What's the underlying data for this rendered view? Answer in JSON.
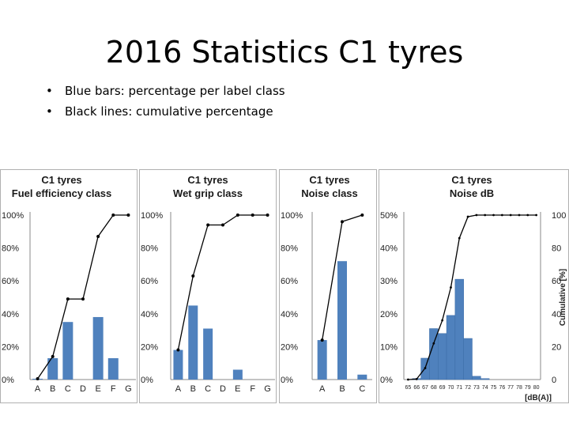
{
  "slide": {
    "title": "2016 Statistics C1 tyres",
    "bullets": [
      "Blue bars: percentage per label class",
      "Black lines: cumulative percentage"
    ]
  },
  "colors": {
    "bar": "#4f81bd",
    "line": "#000000",
    "axis": "#888888",
    "panel_border": "#b0b0b0"
  },
  "chart_data": [
    {
      "type": "bar",
      "title": "C1 tyres Fuel efficiency class",
      "title_lines": [
        "C1 tyres",
        "Fuel efficiency class"
      ],
      "categories": [
        "A",
        "B",
        "C",
        "D",
        "E",
        "F",
        "G"
      ],
      "series": [
        {
          "values": [
            0.5,
            13,
            35,
            0,
            38,
            13,
            0
          ]
        },
        {
          "values": [
            0.5,
            14,
            49,
            49,
            87,
            100,
            100
          ]
        }
      ],
      "ylim": [
        0,
        100
      ],
      "yticks": [
        "0%",
        "20%",
        "40%",
        "60%",
        "80%",
        "100%"
      ]
    },
    {
      "type": "bar",
      "title": "C1 tyres Wet grip class",
      "title_lines": [
        "C1 tyres",
        "Wet grip class"
      ],
      "categories": [
        "A",
        "B",
        "C",
        "D",
        "E",
        "F",
        "G"
      ],
      "series": [
        {
          "values": [
            18,
            45,
            31,
            0,
            6,
            0,
            0
          ]
        },
        {
          "values": [
            18,
            63,
            94,
            94,
            100,
            100,
            100
          ]
        }
      ],
      "ylim": [
        0,
        100
      ],
      "yticks": [
        "0%",
        "20%",
        "40%",
        "60%",
        "80%",
        "100%"
      ]
    },
    {
      "type": "bar",
      "title": "C1 tyres Noise class",
      "title_lines": [
        "C1 tyres",
        "Noise class"
      ],
      "categories": [
        "A",
        "B",
        "C"
      ],
      "series": [
        {
          "values": [
            24,
            72,
            3
          ]
        },
        {
          "values": [
            24,
            96,
            100
          ]
        }
      ],
      "ylim": [
        0,
        100
      ],
      "yticks": [
        "0%",
        "20%",
        "40%",
        "60%",
        "80%",
        "100%"
      ]
    },
    {
      "type": "bar",
      "title": "C1 tyres Noise dB",
      "title_lines": [
        "C1 tyres",
        "Noise dB"
      ],
      "categories": [
        "65",
        "66",
        "67",
        "68",
        "69",
        "70",
        "71",
        "72",
        "73",
        "74",
        "75",
        "76",
        "77",
        "78",
        "79",
        "80"
      ],
      "series": [
        {
          "values": [
            0,
            0.3,
            6.5,
            15.5,
            14,
            19.5,
            30.5,
            12.5,
            1,
            0.3,
            0,
            0,
            0,
            0,
            0,
            0
          ]
        },
        {
          "values": [
            0,
            0.3,
            7,
            22,
            36,
            56,
            86,
            99,
            100,
            100,
            100,
            100,
            100,
            100,
            100,
            100
          ]
        }
      ],
      "ylim": [
        0,
        50
      ],
      "y2lim": [
        0,
        100
      ],
      "yticks": [
        "0%",
        "10%",
        "20%",
        "30%",
        "40%",
        "50%"
      ],
      "y2ticks": [
        "0",
        "20",
        "40",
        "60",
        "80",
        "100"
      ],
      "y2label": "Cumulative [%]",
      "xlabel": "[dB(A)]"
    }
  ]
}
